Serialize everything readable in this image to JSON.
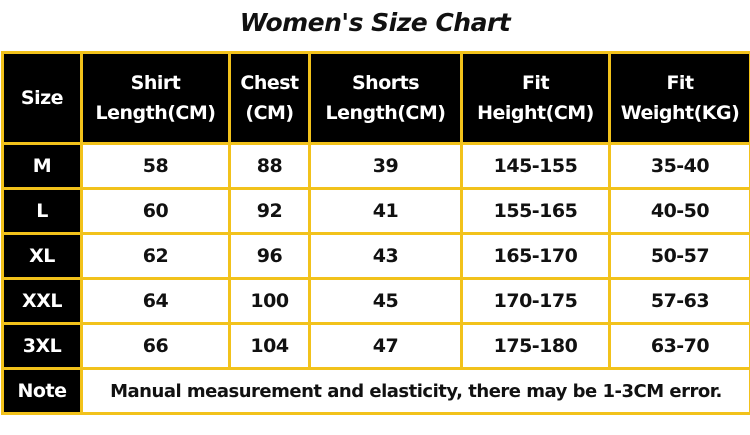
{
  "title": "Women's Size Chart",
  "table": {
    "headers": [
      "Size",
      "Shirt\nLength(CM)",
      "Chest\n(CM)",
      "Shorts\nLength(CM)",
      "Fit\nHeight(CM)",
      "Fit\nWeight(KG)"
    ],
    "rows": [
      [
        "M",
        "58",
        "88",
        "39",
        "145-155",
        "35-40"
      ],
      [
        "L",
        "60",
        "92",
        "41",
        "155-165",
        "40-50"
      ],
      [
        "XL",
        "62",
        "96",
        "43",
        "165-170",
        "50-57"
      ],
      [
        "XXL",
        "64",
        "100",
        "45",
        "170-175",
        "57-63"
      ],
      [
        "3XL",
        "66",
        "104",
        "47",
        "175-180",
        "63-70"
      ]
    ],
    "note": {
      "label": "Note",
      "text": "Manual measurement and elasticity, there may be 1-3CM error."
    }
  }
}
